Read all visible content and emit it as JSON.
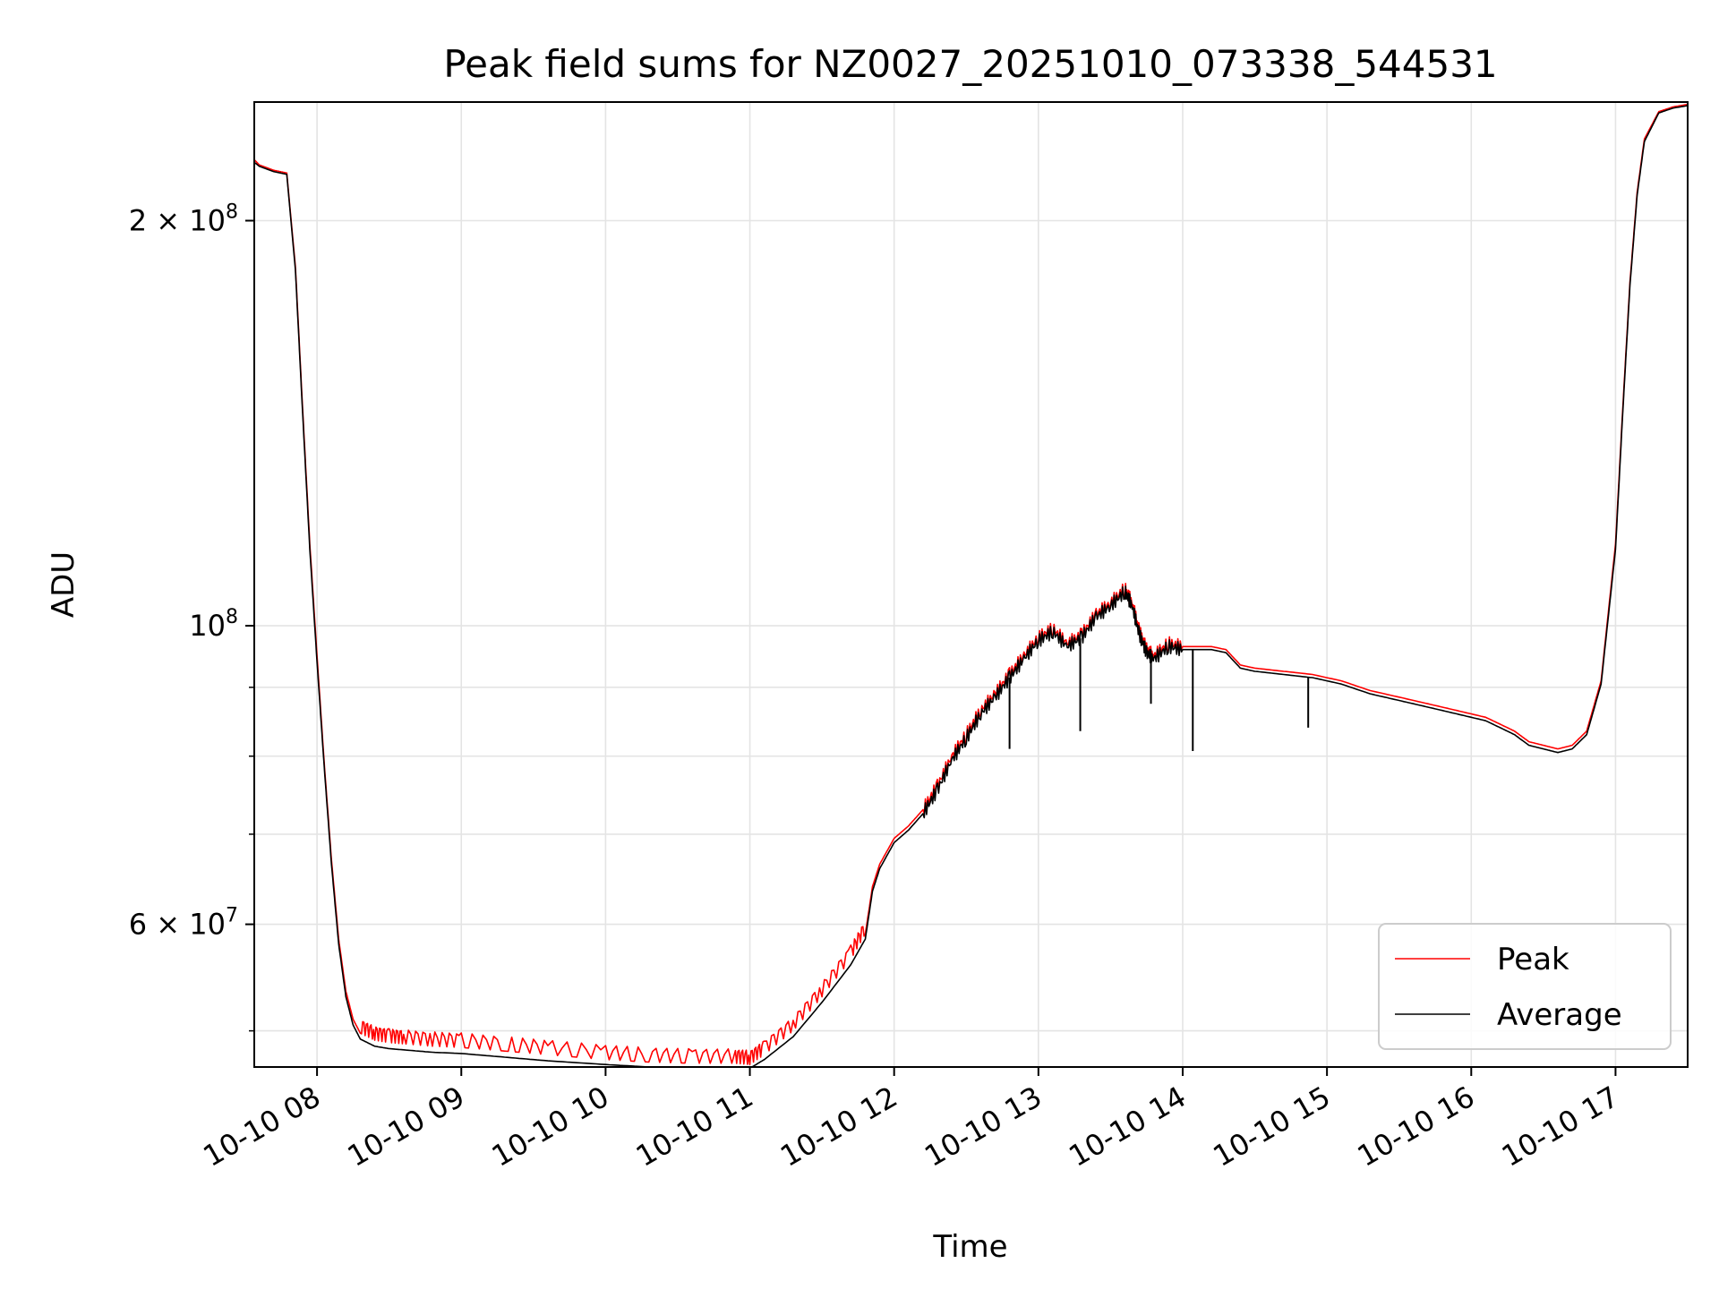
{
  "chart_data": {
    "type": "line",
    "title": "Peak field sums for NZ0027_20251010_073338_544531",
    "xlabel": "Time",
    "ylabel": "ADU",
    "yscale": "log",
    "xlim_hours": [
      7.565,
      17.5
    ],
    "ylim": [
      47000000,
      245000000
    ],
    "grid": true,
    "legend_position": "lower-right",
    "x_ticks": [
      {
        "hour": 8,
        "label": "10-10 08"
      },
      {
        "hour": 9,
        "label": "10-10 09"
      },
      {
        "hour": 10,
        "label": "10-10 10"
      },
      {
        "hour": 11,
        "label": "10-10 11"
      },
      {
        "hour": 12,
        "label": "10-10 12"
      },
      {
        "hour": 13,
        "label": "10-10 13"
      },
      {
        "hour": 14,
        "label": "10-10 14"
      },
      {
        "hour": 15,
        "label": "10-10 15"
      },
      {
        "hour": 16,
        "label": "10-10 16"
      },
      {
        "hour": 17,
        "label": "10-10 17"
      }
    ],
    "y_major_ticks": [
      {
        "value": 60000000,
        "base": "6",
        "exp": "7",
        "prefix": "6 × 10"
      },
      {
        "value": 100000000,
        "base": "",
        "exp": "8",
        "prefix": "10"
      },
      {
        "value": 200000000,
        "base": "2",
        "exp": "8",
        "prefix": "2 × 10"
      }
    ],
    "y_minor_ticks": [
      50000000,
      70000000,
      80000000,
      90000000
    ],
    "series": [
      {
        "name": "Peak",
        "color": "#ff0000",
        "x_hours": [
          7.565,
          7.6,
          7.7,
          7.79,
          7.85,
          7.9,
          7.95,
          8.0,
          8.05,
          8.1,
          8.15,
          8.2,
          8.25,
          8.3,
          8.4,
          8.5,
          8.6,
          8.8,
          9.0,
          9.3,
          9.6,
          10.0,
          10.3,
          10.6,
          10.9,
          11.0,
          11.1,
          11.3,
          11.5,
          11.7,
          11.8,
          11.85,
          11.9,
          12.0,
          12.1,
          12.2,
          12.3,
          12.4,
          12.5,
          12.6,
          12.7,
          12.8,
          12.9,
          13.0,
          13.1,
          13.2,
          13.3,
          13.4,
          13.5,
          13.6,
          13.65,
          13.7,
          13.75,
          13.8,
          13.9,
          14.0,
          14.1,
          14.2,
          14.3,
          14.4,
          14.5,
          14.7,
          14.9,
          15.1,
          15.3,
          15.5,
          15.7,
          15.9,
          16.1,
          16.2,
          16.3,
          16.4,
          16.5,
          16.6,
          16.7,
          16.8,
          16.9,
          17.0,
          17.05,
          17.1,
          17.15,
          17.2,
          17.3,
          17.4,
          17.5
        ],
        "values": [
          222000000,
          220000000,
          218000000,
          217000000,
          185000000,
          145000000,
          115000000,
          95000000,
          79000000,
          67000000,
          58500000,
          53500000,
          51000000,
          49800000,
          49200000,
          49000000,
          48900000,
          48700000,
          48600000,
          48300000,
          48000000,
          47600000,
          47400000,
          47300000,
          47300000,
          47200000,
          48000000,
          50000000,
          53000000,
          56500000,
          59000000,
          64000000,
          66500000,
          69500000,
          71000000,
          73000000,
          76000000,
          80000000,
          83000000,
          86500000,
          89000000,
          92000000,
          95000000,
          98000000,
          99500000,
          97000000,
          98500000,
          102000000,
          104000000,
          106500000,
          104000000,
          99000000,
          96000000,
          95000000,
          97000000,
          96500000,
          96500000,
          96500000,
          96000000,
          93500000,
          93000000,
          92500000,
          92000000,
          91000000,
          89500000,
          88500000,
          87500000,
          86500000,
          85500000,
          84500000,
          83500000,
          82000000,
          81500000,
          81000000,
          81500000,
          83500000,
          91000000,
          115000000,
          145000000,
          180000000,
          210000000,
          230000000,
          241000000,
          243000000,
          244000000
        ]
      },
      {
        "name": "Average",
        "color": "#000000",
        "x_hours": [
          7.565,
          7.6,
          7.7,
          7.79,
          7.85,
          7.9,
          7.95,
          8.0,
          8.05,
          8.1,
          8.15,
          8.2,
          8.25,
          8.3,
          8.4,
          8.5,
          8.6,
          8.8,
          9.0,
          9.3,
          9.6,
          10.0,
          10.3,
          10.6,
          10.9,
          11.0,
          11.1,
          11.3,
          11.5,
          11.7,
          11.8,
          11.85,
          11.9,
          12.0,
          12.1,
          12.2,
          12.3,
          12.4,
          12.5,
          12.6,
          12.7,
          12.8,
          12.9,
          13.0,
          13.1,
          13.2,
          13.3,
          13.4,
          13.5,
          13.6,
          13.65,
          13.7,
          13.75,
          13.8,
          13.9,
          14.0,
          14.1,
          14.2,
          14.3,
          14.4,
          14.5,
          14.7,
          14.9,
          15.1,
          15.3,
          15.5,
          15.7,
          15.9,
          16.1,
          16.2,
          16.3,
          16.4,
          16.5,
          16.6,
          16.7,
          16.8,
          16.9,
          17.0,
          17.05,
          17.1,
          17.15,
          17.2,
          17.3,
          17.4,
          17.5
        ],
        "values": [
          221000000,
          219500000,
          217500000,
          216500000,
          184000000,
          144000000,
          114000000,
          94000000,
          78500000,
          66500000,
          58000000,
          53000000,
          50500000,
          49300000,
          48700000,
          48500000,
          48400000,
          48200000,
          48100000,
          47800000,
          47500000,
          47200000,
          47000000,
          46900000,
          46900000,
          46900000,
          47600000,
          49500000,
          52500000,
          56000000,
          58500000,
          63500000,
          66000000,
          69000000,
          70500000,
          72500000,
          75500000,
          79500000,
          82500000,
          86000000,
          88500000,
          91500000,
          94500000,
          97500000,
          99000000,
          96500000,
          98000000,
          101500000,
          103500000,
          106000000,
          103500000,
          98500000,
          95500000,
          94500000,
          96500000,
          96000000,
          96000000,
          96000000,
          95500000,
          93000000,
          92500000,
          92000000,
          91500000,
          90500000,
          89000000,
          88000000,
          87000000,
          86000000,
          85000000,
          84000000,
          83000000,
          81500000,
          81000000,
          80500000,
          81000000,
          83000000,
          90500000,
          114000000,
          144000000,
          179000000,
          209000000,
          229000000,
          240500000,
          242500000,
          243500000
        ]
      }
    ],
    "dips": [
      {
        "hour": 12.8,
        "value": 81000000
      },
      {
        "hour": 13.29,
        "value": 83500000
      },
      {
        "hour": 13.78,
        "value": 87500000
      },
      {
        "hour": 14.07,
        "value": 80700000
      },
      {
        "hour": 14.87,
        "value": 84000000
      }
    ]
  }
}
